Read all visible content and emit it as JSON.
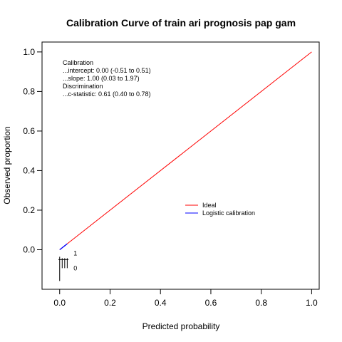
{
  "chart_data": {
    "type": "line",
    "title": "Calibration Curve of train ari prognosis pap gam",
    "xlabel": "Predicted probability",
    "ylabel": "Observed proportion",
    "xlim": [
      -0.07,
      1.03
    ],
    "ylim": [
      -0.2,
      1.05
    ],
    "x_ticks": [
      0.0,
      0.2,
      0.4,
      0.6,
      0.8,
      1.0
    ],
    "x_tick_labels": [
      "0.0",
      "0.2",
      "0.4",
      "0.6",
      "0.8",
      "1.0"
    ],
    "y_ticks": [
      0.0,
      0.2,
      0.4,
      0.6,
      0.8,
      1.0
    ],
    "y_tick_labels": [
      "0.0",
      "0.2",
      "0.4",
      "0.6",
      "0.8",
      "1.0"
    ],
    "grid": false,
    "legend_position": "center-right",
    "series": [
      {
        "name": "Ideal",
        "color": "#ff0000",
        "x": [
          0.0,
          1.0
        ],
        "y": [
          0.0,
          1.0
        ]
      },
      {
        "name": "Logistic calibration",
        "color": "#0000ff",
        "x": [
          0.0,
          0.01,
          0.02,
          0.03
        ],
        "y": [
          0.0,
          0.01,
          0.02,
          0.03
        ]
      }
    ],
    "annotations": [
      "Calibration",
      "...intercept: 0.00 (-0.51 to 0.51)",
      "...slope: 1.00 (0.03 to 1.97)",
      "Discrimination",
      "...c-statistic: 0.61 (0.40 to 0.78)"
    ],
    "rug": {
      "labels": [
        "1",
        "0"
      ],
      "event_x": [
        0.0,
        0.01,
        0.02,
        0.03
      ],
      "nonevent_x": [
        0.0,
        0.01,
        0.02,
        0.03
      ]
    }
  }
}
